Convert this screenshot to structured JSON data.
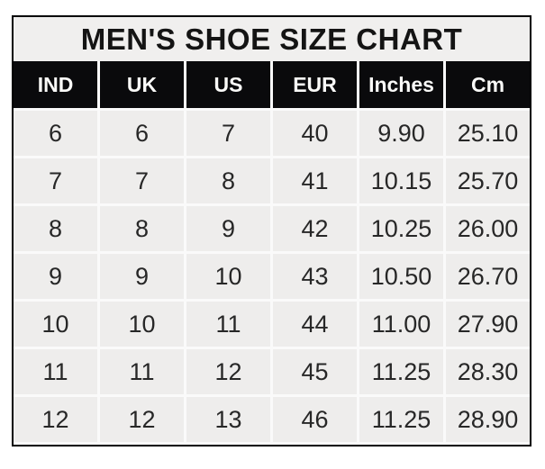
{
  "chart_data": {
    "type": "table",
    "title": "MEN'S SHOE SIZE CHART",
    "columns": [
      "IND",
      "UK",
      "US",
      "EUR",
      "Inches",
      "Cm"
    ],
    "rows": [
      [
        "6",
        "6",
        "7",
        "40",
        "9.90",
        "25.10"
      ],
      [
        "7",
        "7",
        "8",
        "41",
        "10.15",
        "25.70"
      ],
      [
        "8",
        "8",
        "9",
        "42",
        "10.25",
        "26.00"
      ],
      [
        "9",
        "9",
        "10",
        "43",
        "10.50",
        "26.70"
      ],
      [
        "10",
        "10",
        "11",
        "44",
        "11.00",
        "27.90"
      ],
      [
        "11",
        "11",
        "12",
        "45",
        "11.25",
        "28.30"
      ],
      [
        "12",
        "12",
        "13",
        "46",
        "11.25",
        "28.90"
      ]
    ]
  },
  "colors": {
    "page_bg": "#ffffff",
    "title_bg": "#f0efee",
    "title_text": "#141414",
    "header_bg": "#0a0a0c",
    "header_text": "#fafaf8",
    "cell_bg": "#eeedec",
    "cell_text": "#272727",
    "grid_line": "#fafafa",
    "outer_border": "#000000"
  }
}
